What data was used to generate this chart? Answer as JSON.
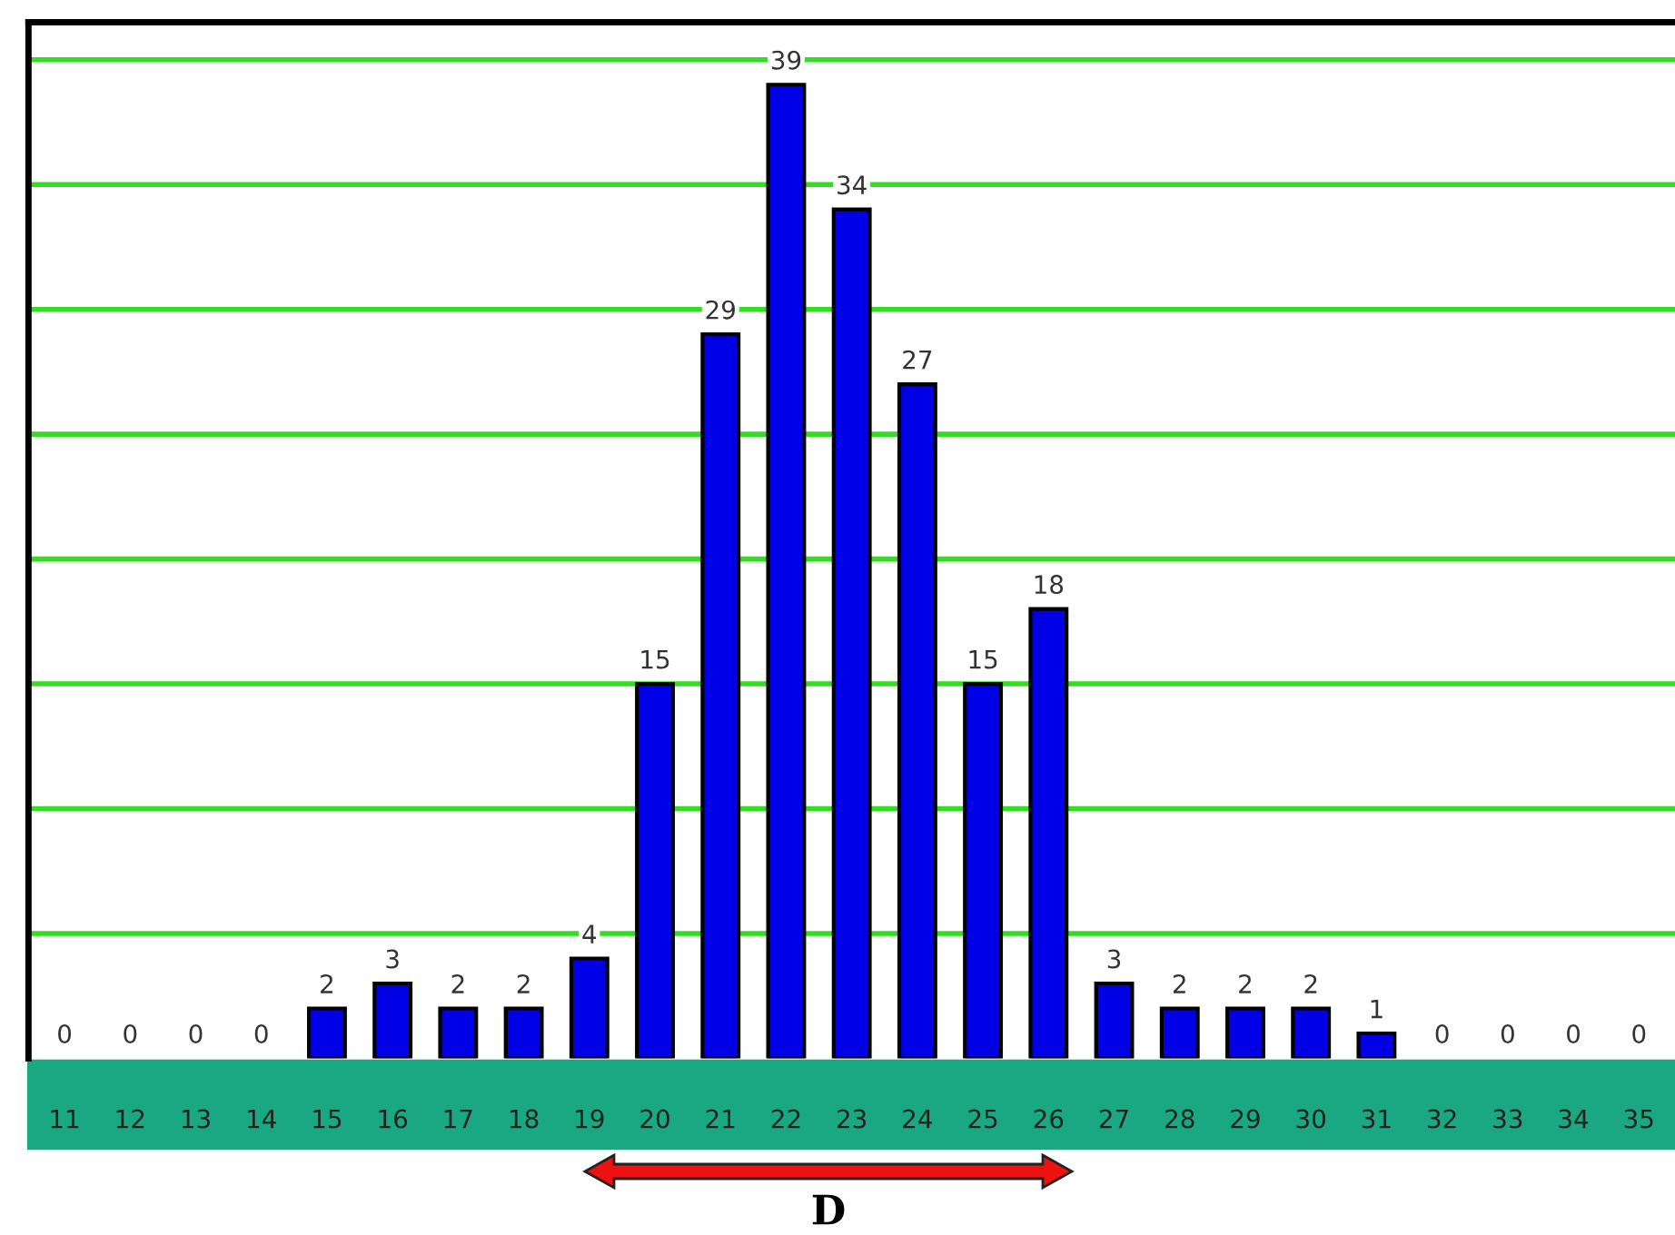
{
  "chart_data": {
    "type": "bar",
    "categories": [
      "11",
      "12",
      "13",
      "14",
      "15",
      "16",
      "17",
      "18",
      "19",
      "20",
      "21",
      "22",
      "23",
      "24",
      "25",
      "26",
      "27",
      "28",
      "29",
      "30",
      "31",
      "32",
      "33",
      "34",
      "35"
    ],
    "values": [
      0,
      0,
      0,
      0,
      2,
      3,
      2,
      2,
      4,
      15,
      29,
      39,
      34,
      27,
      15,
      18,
      3,
      2,
      2,
      2,
      1,
      0,
      0,
      0,
      0
    ],
    "color": "#0000e6",
    "ylim": [
      0,
      41.5
    ],
    "yticks": [
      {
        "value": 5,
        "label": null
      },
      {
        "value": 10,
        "label": null
      },
      {
        "value": 15,
        "label": null
      },
      {
        "value": 20,
        "label": null
      },
      {
        "value": 25,
        "label": null
      },
      {
        "value": 30,
        "label": null
      },
      {
        "value": 35,
        "label": null
      },
      {
        "value": 40,
        "label": null
      }
    ],
    "grid": "y",
    "data_labels": true,
    "annotations": [
      "D"
    ]
  }
}
